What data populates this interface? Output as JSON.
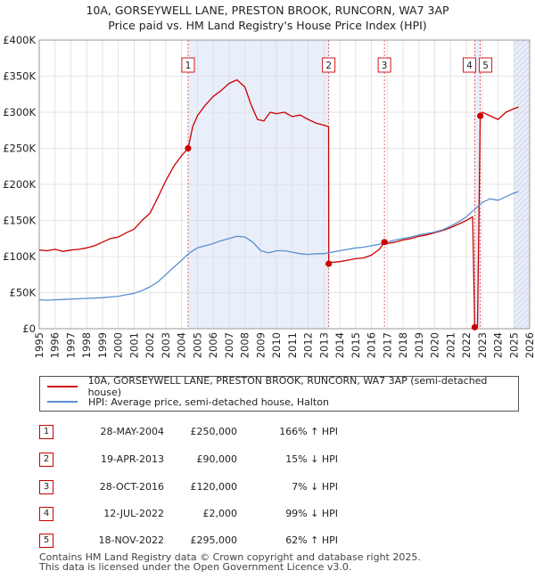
{
  "title": {
    "line1": "10A, GORSEYWELL LANE, PRESTON BROOK, RUNCORN, WA7 3AP",
    "line2": "Price paid vs. HM Land Registry's House Price Index (HPI)"
  },
  "colors": {
    "price": "#cc0000",
    "hpi": "#5b8fd0",
    "shade": "#e8eefa",
    "grid": "#dddddd"
  },
  "chart_data": {
    "type": "line",
    "xlim": [
      1995,
      2026
    ],
    "ylim": [
      0,
      400000
    ],
    "x_ticks": [
      "1995",
      "1996",
      "1997",
      "1998",
      "1999",
      "2000",
      "2001",
      "2002",
      "2003",
      "2004",
      "2005",
      "2006",
      "2007",
      "2008",
      "2009",
      "2010",
      "2011",
      "2012",
      "2013",
      "2014",
      "2015",
      "2016",
      "2017",
      "2018",
      "2019",
      "2020",
      "2021",
      "2022",
      "2023",
      "2024",
      "2025",
      "2026"
    ],
    "y_ticks": [
      {
        "value": 0,
        "label": "£0"
      },
      {
        "value": 50000,
        "label": "£50K"
      },
      {
        "value": 100000,
        "label": "£100K"
      },
      {
        "value": 150000,
        "label": "£150K"
      },
      {
        "value": 200000,
        "label": "£200K"
      },
      {
        "value": 250000,
        "label": "£250K"
      },
      {
        "value": 300000,
        "label": "£300K"
      },
      {
        "value": 350000,
        "label": "£350K"
      },
      {
        "value": 400000,
        "label": "£400K"
      }
    ],
    "shaded_ranges": [
      [
        2004.41,
        2013.3
      ],
      [
        2022.53,
        2022.88
      ],
      [
        2025.0,
        2026.0
      ]
    ],
    "series": [
      {
        "name": "10A, GORSEYWELL LANE, PRESTON BROOK, RUNCORN, WA7 3AP (semi-detached house)",
        "color": "#cc0000",
        "x": [
          1995.0,
          1995.5,
          1996.0,
          1996.5,
          1997.0,
          1997.5,
          1998.0,
          1998.5,
          1999.0,
          1999.5,
          2000.0,
          2000.5,
          2001.0,
          2001.5,
          2002.0,
          2002.5,
          2003.0,
          2003.5,
          2004.0,
          2004.41,
          2004.7,
          2005.0,
          2005.5,
          2006.0,
          2006.5,
          2007.0,
          2007.5,
          2008.0,
          2008.4,
          2008.8,
          2009.2,
          2009.6,
          2010.0,
          2010.5,
          2011.0,
          2011.5,
          2012.0,
          2012.5,
          2013.0,
          2013.29,
          2013.3,
          2013.5,
          2014.0,
          2014.5,
          2015.0,
          2015.5,
          2016.0,
          2016.5,
          2016.82,
          2017.0,
          2017.5,
          2018.0,
          2018.5,
          2019.0,
          2019.5,
          2020.0,
          2020.5,
          2021.0,
          2021.5,
          2022.0,
          2022.4,
          2022.53,
          2022.7,
          2022.88,
          2023.0,
          2023.5,
          2024.0,
          2024.5,
          2025.0,
          2025.3
        ],
        "values": [
          109000,
          108000,
          110000,
          107000,
          109000,
          110000,
          112000,
          115000,
          120000,
          125000,
          127000,
          133000,
          138000,
          150000,
          160000,
          182000,
          205000,
          225000,
          240000,
          250000,
          280000,
          295000,
          310000,
          322000,
          330000,
          340000,
          345000,
          335000,
          310000,
          290000,
          288000,
          300000,
          298000,
          300000,
          294000,
          296000,
          290000,
          285000,
          282000,
          280000,
          90000,
          92000,
          93000,
          95000,
          97000,
          98000,
          102000,
          110000,
          120000,
          118000,
          120000,
          123000,
          125000,
          128000,
          130000,
          133000,
          136000,
          140000,
          145000,
          150000,
          155000,
          2000,
          2000,
          295000,
          300000,
          295000,
          290000,
          300000,
          305000,
          307000
        ]
      },
      {
        "name": "HPI: Average price, semi-detached house, Halton",
        "color": "#5b8fd0",
        "x": [
          1995.0,
          1995.5,
          1996.0,
          1996.5,
          1997.0,
          1997.5,
          1998.0,
          1998.5,
          1999.0,
          1999.5,
          2000.0,
          2000.5,
          2001.0,
          2001.5,
          2002.0,
          2002.5,
          2003.0,
          2003.5,
          2004.0,
          2004.5,
          2005.0,
          2005.5,
          2006.0,
          2006.5,
          2007.0,
          2007.5,
          2008.0,
          2008.5,
          2009.0,
          2009.5,
          2010.0,
          2010.5,
          2011.0,
          2011.5,
          2012.0,
          2012.5,
          2013.0,
          2013.5,
          2014.0,
          2014.5,
          2015.0,
          2015.5,
          2016.0,
          2016.5,
          2017.0,
          2017.5,
          2018.0,
          2018.5,
          2019.0,
          2019.5,
          2020.0,
          2020.5,
          2021.0,
          2021.5,
          2022.0,
          2022.5,
          2023.0,
          2023.5,
          2024.0,
          2024.5,
          2025.0,
          2025.3
        ],
        "values": [
          40000,
          39500,
          40000,
          40500,
          41000,
          41500,
          42000,
          42500,
          43000,
          44000,
          45000,
          47000,
          49000,
          53000,
          58000,
          65000,
          75000,
          85000,
          95000,
          105000,
          112000,
          115000,
          118000,
          122000,
          125000,
          128000,
          127000,
          120000,
          108000,
          105000,
          108000,
          108000,
          106000,
          104000,
          103000,
          104000,
          104000,
          106000,
          108000,
          110000,
          112000,
          113000,
          115000,
          117000,
          120000,
          123000,
          125000,
          127000,
          130000,
          132000,
          134000,
          137000,
          142000,
          148000,
          155000,
          165000,
          175000,
          180000,
          178000,
          183000,
          188000,
          190000
        ]
      }
    ],
    "sales": [
      {
        "label": "1",
        "x": 2004.41,
        "y": 250000
      },
      {
        "label": "2",
        "x": 2013.3,
        "y": 90000
      },
      {
        "label": "3",
        "x": 2016.82,
        "y": 120000
      },
      {
        "label": "4",
        "x": 2022.53,
        "y": 2000
      },
      {
        "label": "5",
        "x": 2022.88,
        "y": 295000
      }
    ]
  },
  "legend": {
    "price_label": "10A, GORSEYWELL LANE, PRESTON BROOK, RUNCORN, WA7 3AP (semi-detached house)",
    "hpi_label": "HPI: Average price, semi-detached house, Halton"
  },
  "sales_table": [
    {
      "num": "1",
      "date": "28-MAY-2004",
      "price": "£250,000",
      "hpi": "166% ↑ HPI"
    },
    {
      "num": "2",
      "date": "19-APR-2013",
      "price": "£90,000",
      "hpi": "15% ↓ HPI"
    },
    {
      "num": "3",
      "date": "28-OCT-2016",
      "price": "£120,000",
      "hpi": "7% ↓ HPI"
    },
    {
      "num": "4",
      "date": "12-JUL-2022",
      "price": "£2,000",
      "hpi": "99% ↓ HPI"
    },
    {
      "num": "5",
      "date": "18-NOV-2022",
      "price": "£295,000",
      "hpi": "62% ↑ HPI"
    }
  ],
  "footer": {
    "line1": "Contains HM Land Registry data © Crown copyright and database right 2025.",
    "line2": "This data is licensed under the Open Government Licence v3.0."
  }
}
